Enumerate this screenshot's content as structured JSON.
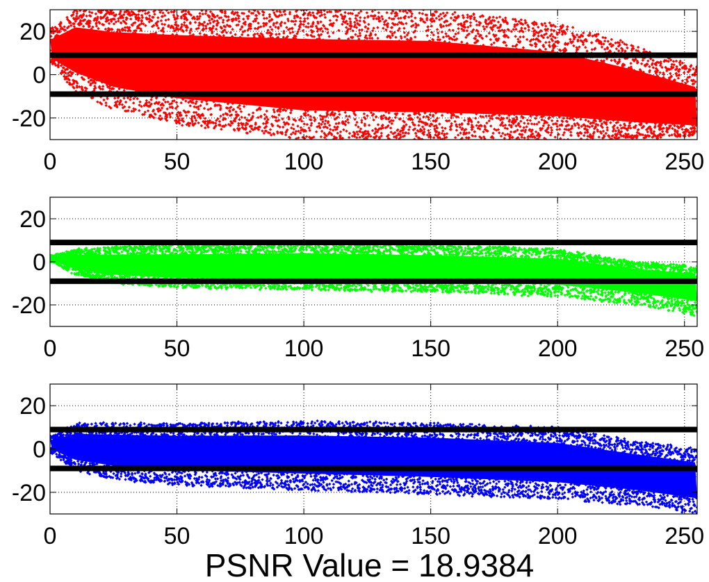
{
  "chart_data": [
    {
      "type": "scatter",
      "xlim": [
        0,
        255
      ],
      "ylim": [
        -30,
        30
      ],
      "x_ticks": [
        0,
        50,
        100,
        150,
        200,
        250
      ],
      "y_ticks": [
        -20,
        0,
        20
      ],
      "x_tick_labels": [
        "0",
        "50",
        "100",
        "150",
        "200",
        "250"
      ],
      "y_tick_labels": [
        "-20",
        "0",
        "20"
      ],
      "grid": true,
      "series": [
        {
          "color": "#ff0000",
          "marker": "diamond-dot",
          "band": {
            "x": [
              1,
              10,
              25,
              50,
              100,
              150,
              200,
              230,
              255
            ],
            "upper": [
              22,
              30,
              30,
              30,
              30,
              30,
              24,
              14,
              4
            ],
            "lower": [
              5,
              -8,
              -16,
              -23,
              -30,
              -30,
              -30,
              -30,
              -28
            ],
            "center": [
              10,
              12,
              7,
              4,
              0,
              -2,
              -6,
              -12,
              -18
            ]
          }
        }
      ],
      "threshold_lines": [
        9,
        -9
      ],
      "threshold_color": "#000000"
    },
    {
      "type": "scatter",
      "xlim": [
        0,
        255
      ],
      "ylim": [
        -30,
        30
      ],
      "x_ticks": [
        0,
        50,
        100,
        150,
        200,
        250
      ],
      "y_ticks": [
        -20,
        0,
        20
      ],
      "x_tick_labels": [
        "0",
        "50",
        "100",
        "150",
        "200",
        "250"
      ],
      "y_tick_labels": [
        "-20",
        "0",
        "20"
      ],
      "grid": true,
      "series": [
        {
          "color": "#00ff00",
          "marker": "diamond-dot",
          "band": {
            "x": [
              1,
              10,
              25,
              50,
              100,
              150,
              200,
              230,
              255
            ],
            "upper": [
              3,
              6,
              7,
              8,
              9,
              8,
              6,
              0,
              -2
            ],
            "lower": [
              0,
              -6,
              -10,
              -12,
              -13,
              -14,
              -16,
              -20,
              -25
            ],
            "center": [
              1,
              0,
              -1,
              -2,
              -2,
              -3,
              -4,
              -7,
              -10
            ]
          }
        }
      ],
      "threshold_lines": [
        9,
        -9
      ],
      "threshold_color": "#000000"
    },
    {
      "type": "scatter",
      "xlim": [
        0,
        255
      ],
      "ylim": [
        -30,
        30
      ],
      "x_ticks": [
        0,
        50,
        100,
        150,
        200,
        250
      ],
      "y_ticks": [
        -20,
        0,
        20
      ],
      "x_tick_labels": [
        "0",
        "50",
        "100",
        "150",
        "200",
        "250"
      ],
      "y_tick_labels": [
        "-20",
        "0",
        "20"
      ],
      "grid": true,
      "series": [
        {
          "color": "#0000ff",
          "marker": "diamond-dot",
          "band": {
            "x": [
              1,
              10,
              25,
              50,
              100,
              150,
              200,
              230,
              255
            ],
            "upper": [
              6,
              12,
              12,
              12,
              13,
              12,
              10,
              4,
              0
            ],
            "lower": [
              -2,
              -10,
              -14,
              -17,
              -19,
              -21,
              -23,
              -26,
              -30
            ],
            "center": [
              2,
              1,
              0,
              -1,
              -2,
              -3,
              -6,
              -10,
              -14
            ]
          }
        }
      ],
      "threshold_lines": [
        9,
        -9
      ],
      "threshold_color": "#000000"
    }
  ],
  "xlabel": "PSNR Value = 18.9384"
}
